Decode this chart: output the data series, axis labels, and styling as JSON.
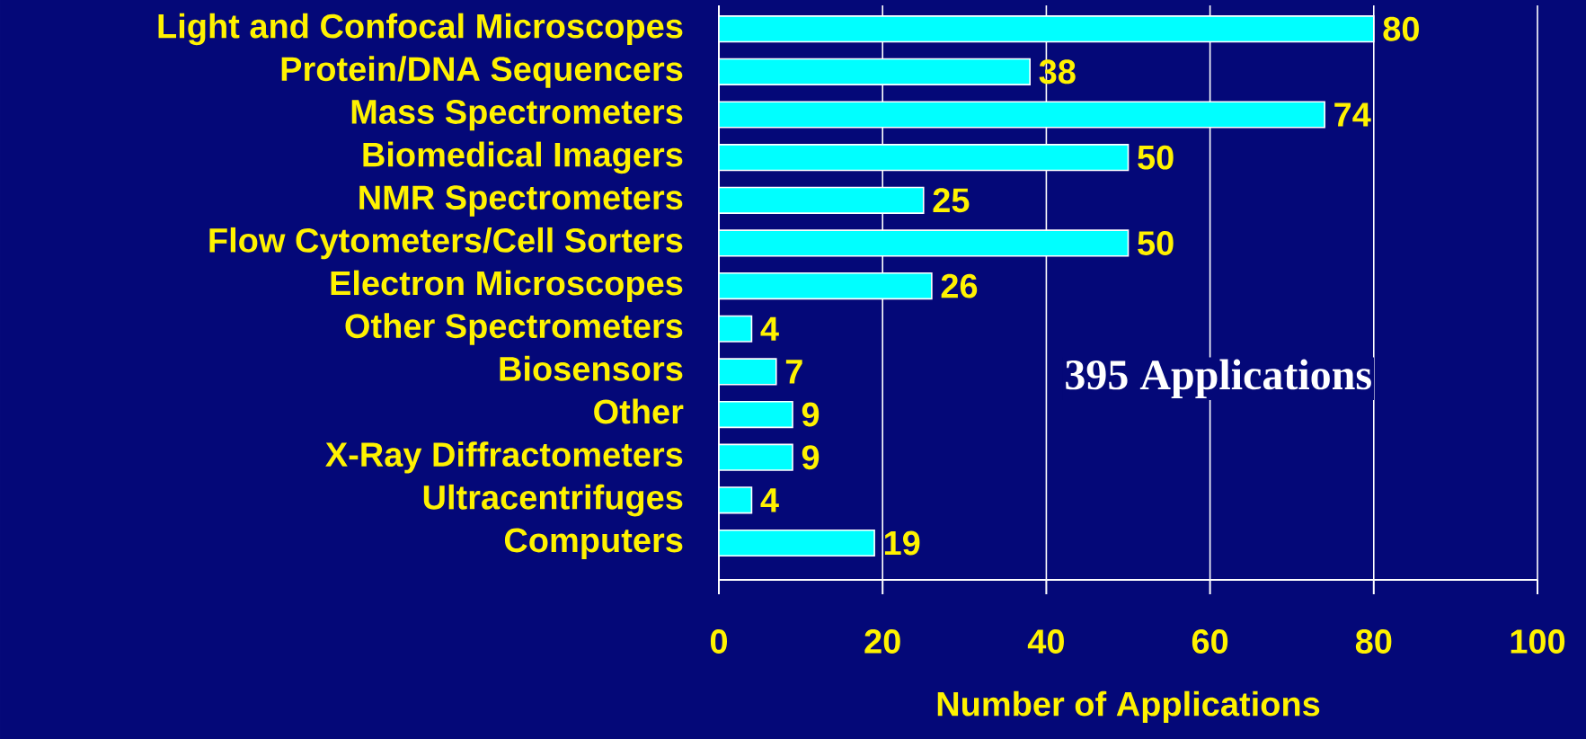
{
  "chart_data": {
    "type": "bar",
    "orientation": "horizontal",
    "categories": [
      "Light and Confocal Microscopes",
      "Protein/DNA Sequencers",
      "Mass Spectrometers",
      "Biomedical Imagers",
      "NMR Spectrometers",
      "Flow Cytometers/Cell Sorters",
      "Electron Microscopes",
      "Other Spectrometers",
      "Biosensors",
      "Other",
      "X-Ray Diffractometers",
      "Ultracentrifuges",
      "Computers"
    ],
    "values": [
      80,
      38,
      74,
      50,
      25,
      50,
      26,
      4,
      7,
      9,
      9,
      4,
      19
    ],
    "color": "#00ffff",
    "data_labels": true,
    "xlim": [
      0,
      100
    ],
    "xticks": [
      0,
      20,
      40,
      60,
      80,
      100
    ],
    "grid": "x",
    "xlabel": "Number of Applications",
    "annotations": [
      "395 Applications"
    ]
  }
}
